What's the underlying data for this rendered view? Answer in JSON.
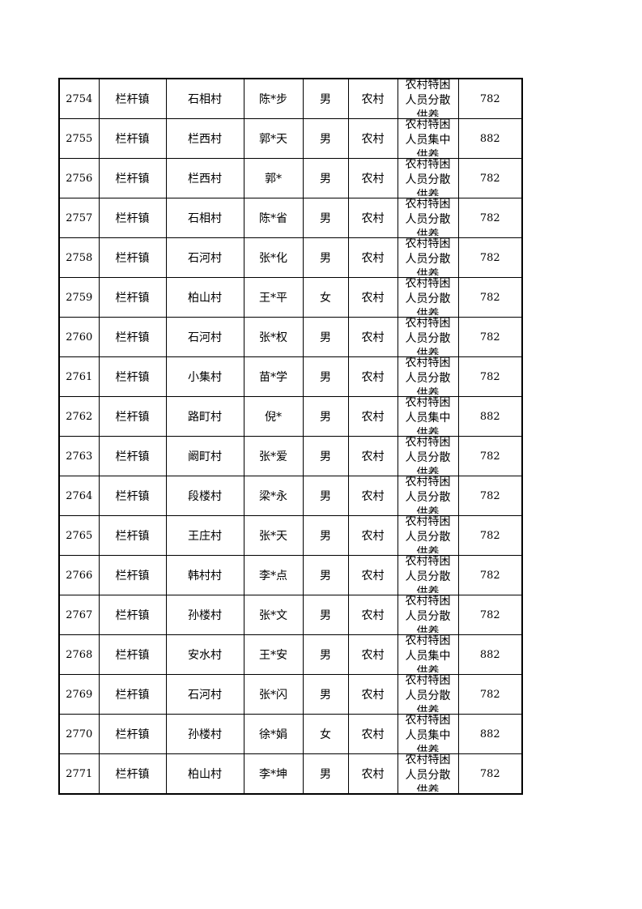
{
  "rows": [
    {
      "id": "2754",
      "town": "栏杆镇",
      "village": "石相村",
      "name": "陈*步",
      "gender": "男",
      "area": "农村",
      "type": "农村特困人员分散供养",
      "amount": "782"
    },
    {
      "id": "2755",
      "town": "栏杆镇",
      "village": "栏西村",
      "name": "郭*天",
      "gender": "男",
      "area": "农村",
      "type": "农村特困人员集中供养",
      "amount": "882"
    },
    {
      "id": "2756",
      "town": "栏杆镇",
      "village": "栏西村",
      "name": "郭*",
      "gender": "男",
      "area": "农村",
      "type": "农村特困人员分散供养",
      "amount": "782"
    },
    {
      "id": "2757",
      "town": "栏杆镇",
      "village": "石相村",
      "name": "陈*省",
      "gender": "男",
      "area": "农村",
      "type": "农村特困人员分散供养",
      "amount": "782"
    },
    {
      "id": "2758",
      "town": "栏杆镇",
      "village": "石河村",
      "name": "张*化",
      "gender": "男",
      "area": "农村",
      "type": "农村特困人员分散供养",
      "amount": "782"
    },
    {
      "id": "2759",
      "town": "栏杆镇",
      "village": "柏山村",
      "name": "王*平",
      "gender": "女",
      "area": "农村",
      "type": "农村特困人员分散供养",
      "amount": "782"
    },
    {
      "id": "2760",
      "town": "栏杆镇",
      "village": "石河村",
      "name": "张*权",
      "gender": "男",
      "area": "农村",
      "type": "农村特困人员分散供养",
      "amount": "782"
    },
    {
      "id": "2761",
      "town": "栏杆镇",
      "village": "小集村",
      "name": "苗*学",
      "gender": "男",
      "area": "农村",
      "type": "农村特困人员分散供养",
      "amount": "782"
    },
    {
      "id": "2762",
      "town": "栏杆镇",
      "village": "路町村",
      "name": "倪*",
      "gender": "男",
      "area": "农村",
      "type": "农村特困人员集中供养",
      "amount": "882"
    },
    {
      "id": "2763",
      "town": "栏杆镇",
      "village": "阚町村",
      "name": "张*爱",
      "gender": "男",
      "area": "农村",
      "type": "农村特困人员分散供养",
      "amount": "782"
    },
    {
      "id": "2764",
      "town": "栏杆镇",
      "village": "段楼村",
      "name": "梁*永",
      "gender": "男",
      "area": "农村",
      "type": "农村特困人员分散供养",
      "amount": "782"
    },
    {
      "id": "2765",
      "town": "栏杆镇",
      "village": "王庄村",
      "name": "张*天",
      "gender": "男",
      "area": "农村",
      "type": "农村特困人员分散供养",
      "amount": "782"
    },
    {
      "id": "2766",
      "town": "栏杆镇",
      "village": "韩村村",
      "name": "李*点",
      "gender": "男",
      "area": "农村",
      "type": "农村特困人员分散供养",
      "amount": "782"
    },
    {
      "id": "2767",
      "town": "栏杆镇",
      "village": "孙楼村",
      "name": "张*文",
      "gender": "男",
      "area": "农村",
      "type": "农村特困人员分散供养",
      "amount": "782"
    },
    {
      "id": "2768",
      "town": "栏杆镇",
      "village": "安水村",
      "name": "王*安",
      "gender": "男",
      "area": "农村",
      "type": "农村特困人员集中供养",
      "amount": "882"
    },
    {
      "id": "2769",
      "town": "栏杆镇",
      "village": "石河村",
      "name": "张*闪",
      "gender": "男",
      "area": "农村",
      "type": "农村特困人员分散供养",
      "amount": "782"
    },
    {
      "id": "2770",
      "town": "栏杆镇",
      "village": "孙楼村",
      "name": "徐*娟",
      "gender": "女",
      "area": "农村",
      "type": "农村特困人员集中供养",
      "amount": "882"
    },
    {
      "id": "2771",
      "town": "栏杆镇",
      "village": "柏山村",
      "name": "李*坤",
      "gender": "男",
      "area": "农村",
      "type": "农村特困人员分散供养",
      "amount": "782"
    }
  ]
}
